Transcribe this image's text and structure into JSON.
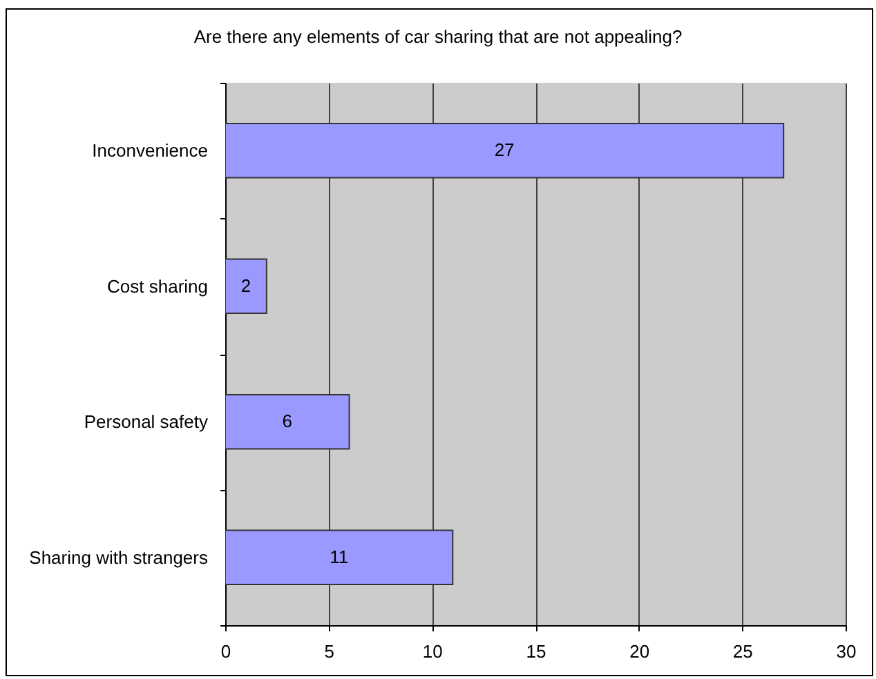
{
  "chart_data": {
    "type": "bar",
    "orientation": "horizontal",
    "title": "Are there any elements of car sharing that are not appealing?",
    "categories": [
      "Inconvenience",
      "Cost sharing",
      "Personal safety",
      "Sharing with strangers"
    ],
    "values": [
      27,
      2,
      6,
      11
    ],
    "color": "#9999ff",
    "xlim": [
      0,
      30
    ],
    "xticks": [
      0,
      5,
      10,
      15,
      20,
      25,
      30
    ],
    "grid": "x",
    "data_labels": true
  }
}
